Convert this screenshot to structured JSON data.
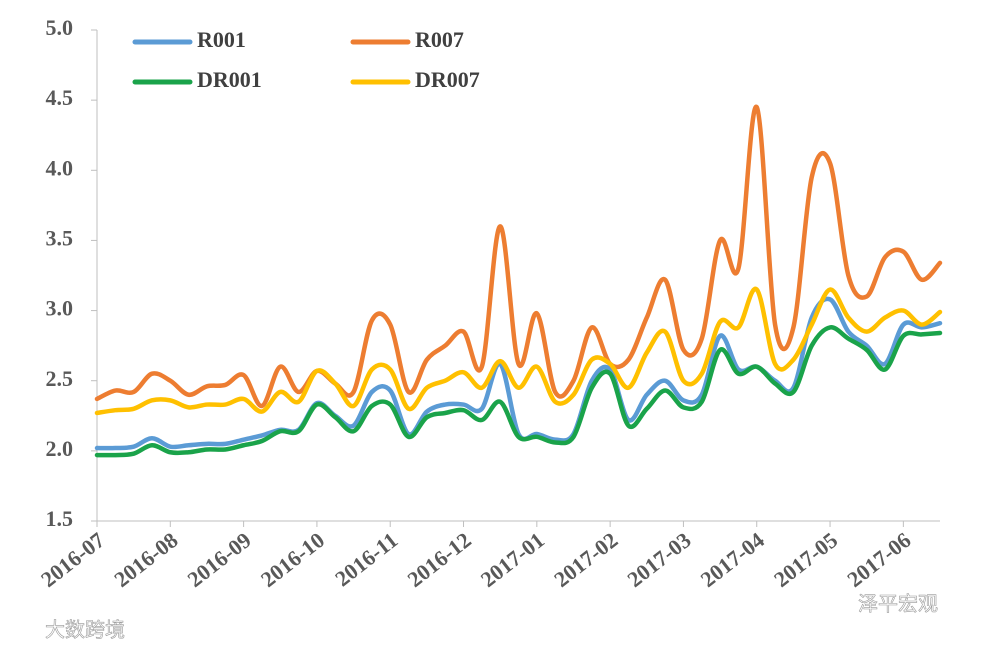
{
  "chart_data": {
    "type": "line",
    "x": [
      0,
      0.25,
      0.5,
      0.75,
      1,
      1.25,
      1.5,
      1.75,
      2,
      2.25,
      2.5,
      2.75,
      3,
      3.25,
      3.5,
      3.75,
      4,
      4.25,
      4.5,
      4.75,
      5,
      5.25,
      5.5,
      5.75,
      6,
      6.25,
      6.5,
      6.75,
      7,
      7.25,
      7.5,
      7.75,
      8,
      8.25,
      8.5,
      8.75,
      9,
      9.25,
      9.5,
      9.75,
      10,
      10.25,
      10.5,
      10.75,
      11,
      11.25,
      11.5
    ],
    "xlim": [
      0,
      11.5
    ],
    "xticks": [
      {
        "value": 0,
        "label": "2016-07"
      },
      {
        "value": 1,
        "label": "2016-08"
      },
      {
        "value": 2,
        "label": "2016-09"
      },
      {
        "value": 3,
        "label": "2016-10"
      },
      {
        "value": 4,
        "label": "2016-11"
      },
      {
        "value": 5,
        "label": "2016-12"
      },
      {
        "value": 6,
        "label": "2017-01"
      },
      {
        "value": 7,
        "label": "2017-02"
      },
      {
        "value": 8,
        "label": "2017-03"
      },
      {
        "value": 9,
        "label": "2017-04"
      },
      {
        "value": 10,
        "label": "2017-05"
      },
      {
        "value": 11,
        "label": "2017-06"
      }
    ],
    "ylim": [
      1.5,
      5
    ],
    "yticks": [
      1.5,
      {
        "value": 2,
        "label": "2.0"
      },
      2.5,
      {
        "value": 3,
        "label": "3.0"
      },
      3.5,
      {
        "value": 4,
        "label": "4.0"
      },
      4.5,
      {
        "value": 5,
        "label": "5.0"
      }
    ],
    "series": [
      {
        "name": "R001",
        "color": "#5b9bd5",
        "values": [
          2.02,
          2.02,
          2.03,
          2.09,
          2.03,
          2.04,
          2.05,
          2.05,
          2.08,
          2.11,
          2.15,
          2.15,
          2.34,
          2.25,
          2.18,
          2.42,
          2.43,
          2.12,
          2.28,
          2.33,
          2.33,
          2.3,
          2.62,
          2.12,
          2.12,
          2.08,
          2.12,
          2.5,
          2.58,
          2.22,
          2.4,
          2.5,
          2.36,
          2.4,
          2.82,
          2.58,
          2.6,
          2.5,
          2.45,
          2.95,
          3.08,
          2.85,
          2.75,
          2.62,
          2.9,
          2.88,
          2.91
        ]
      },
      {
        "name": "R007",
        "color": "#ed7d31",
        "values": [
          2.37,
          2.43,
          2.42,
          2.55,
          2.5,
          2.4,
          2.46,
          2.47,
          2.54,
          2.32,
          2.6,
          2.42,
          2.57,
          2.48,
          2.42,
          2.93,
          2.9,
          2.42,
          2.65,
          2.75,
          2.85,
          2.6,
          3.6,
          2.62,
          2.98,
          2.42,
          2.5,
          2.88,
          2.62,
          2.65,
          2.95,
          3.22,
          2.72,
          2.8,
          3.5,
          3.3,
          4.45,
          2.9,
          2.88,
          3.95,
          4.05,
          3.25,
          3.1,
          3.38,
          3.42,
          3.22,
          3.34
        ]
      },
      {
        "name": "DR001",
        "color": "#1aa34a",
        "values": [
          1.97,
          1.97,
          1.98,
          2.04,
          1.99,
          1.99,
          2.01,
          2.01,
          2.04,
          2.07,
          2.14,
          2.14,
          2.33,
          2.24,
          2.14,
          2.32,
          2.33,
          2.1,
          2.24,
          2.27,
          2.29,
          2.22,
          2.35,
          2.1,
          2.1,
          2.06,
          2.1,
          2.45,
          2.55,
          2.18,
          2.3,
          2.43,
          2.31,
          2.35,
          2.72,
          2.55,
          2.6,
          2.48,
          2.42,
          2.75,
          2.88,
          2.8,
          2.72,
          2.58,
          2.82,
          2.83,
          2.84
        ]
      },
      {
        "name": "DR007",
        "color": "#ffc000",
        "values": [
          2.27,
          2.29,
          2.3,
          2.36,
          2.36,
          2.31,
          2.33,
          2.33,
          2.37,
          2.28,
          2.42,
          2.35,
          2.57,
          2.48,
          2.32,
          2.58,
          2.58,
          2.3,
          2.45,
          2.5,
          2.56,
          2.45,
          2.64,
          2.45,
          2.6,
          2.35,
          2.4,
          2.65,
          2.62,
          2.45,
          2.7,
          2.85,
          2.5,
          2.55,
          2.92,
          2.88,
          3.15,
          2.62,
          2.65,
          2.9,
          3.15,
          2.95,
          2.85,
          2.95,
          3.0,
          2.9,
          2.99
        ]
      }
    ],
    "watermarks": [
      "大数跨境",
      "泽平宏观"
    ]
  }
}
